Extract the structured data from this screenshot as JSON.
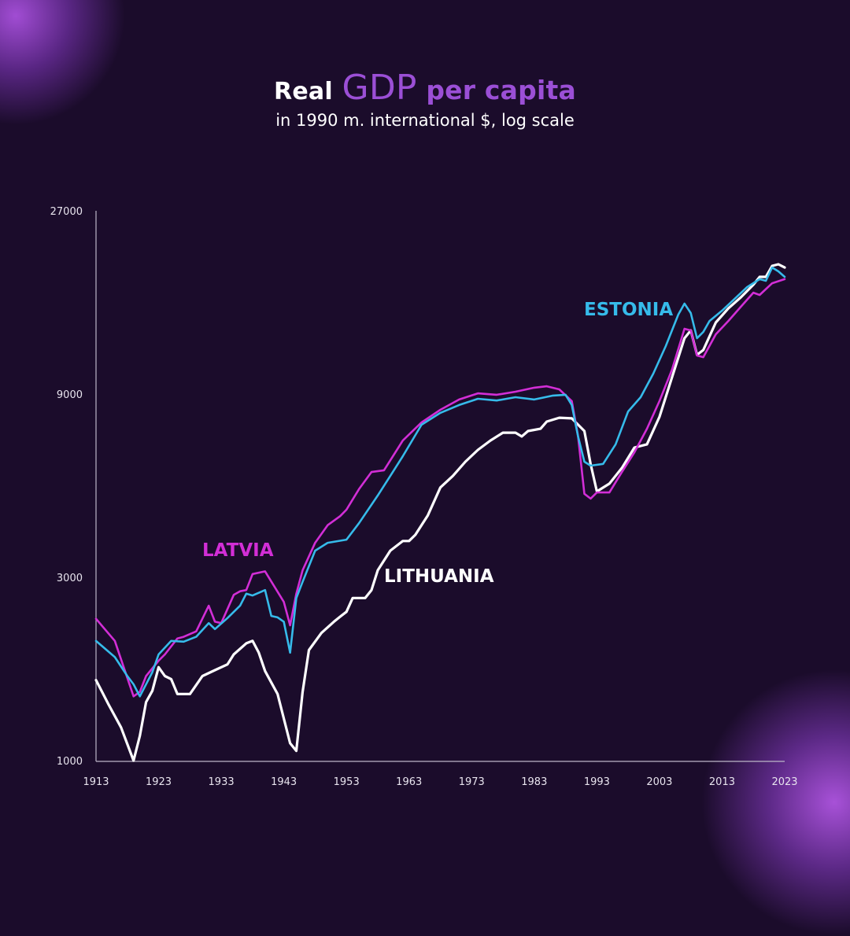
{
  "title": {
    "part1": "Real",
    "part2": "GDP",
    "part3": "per capita"
  },
  "subtitle": "in 1990 m. international $, log scale",
  "colors": {
    "background": "#1b0c2b",
    "accent": "#9b4fd6",
    "latvia": "#d22ed6",
    "estonia": "#36bbea",
    "lithuania": "#ffffff",
    "axis": "#bdb6c8"
  },
  "chart_data": {
    "type": "line",
    "title": "Real GDP per capita",
    "subtitle": "in 1990 m. international $, log scale",
    "xlabel": "",
    "ylabel": "",
    "yscale": "log",
    "xlim": [
      1913,
      2023
    ],
    "ylim": [
      1000,
      27000
    ],
    "x_ticks": [
      "1913",
      "1923",
      "1933",
      "1943",
      "1953",
      "1963",
      "1973",
      "1983",
      "1993",
      "2003",
      "2013",
      "2023"
    ],
    "y_ticks": [
      "1000",
      "3000",
      "9000",
      "27000"
    ],
    "grid": false,
    "legend": "inline labels",
    "series": [
      {
        "name": "LATVIA",
        "color": "#d22ed6",
        "x": [
          1913,
          1916,
          1919,
          1920,
          1921,
          1923,
          1924,
          1926,
          1927,
          1929,
          1931,
          1932,
          1933,
          1935,
          1936,
          1937,
          1938,
          1940,
          1943,
          1944,
          1945,
          1946,
          1948,
          1950,
          1952,
          1953,
          1955,
          1957,
          1959,
          1962,
          1965,
          1968,
          1971,
          1974,
          1977,
          1980,
          1983,
          1985,
          1987,
          1989,
          1990,
          1991,
          1992,
          1993,
          1995,
          1997,
          1999,
          2001,
          2003,
          2005,
          2007,
          2008,
          2009,
          2010,
          2012,
          2014,
          2016,
          2018,
          2019,
          2021,
          2023
        ],
        "values": [
          2340,
          2050,
          1470,
          1510,
          1660,
          1820,
          1890,
          2080,
          2100,
          2170,
          2530,
          2300,
          2280,
          2700,
          2760,
          2780,
          3060,
          3110,
          2590,
          2250,
          2720,
          3130,
          3690,
          4100,
          4330,
          4500,
          5090,
          5640,
          5700,
          6810,
          7590,
          8190,
          8710,
          9040,
          8960,
          9130,
          9350,
          9430,
          9260,
          8630,
          6980,
          4950,
          4810,
          4990,
          4990,
          5640,
          6350,
          7310,
          8630,
          10410,
          13310,
          13180,
          11340,
          11230,
          12880,
          13950,
          15190,
          16530,
          16300,
          17490,
          17920
        ]
      },
      {
        "name": "ESTONIA",
        "color": "#36bbea",
        "x": [
          1913,
          1916,
          1918,
          1919,
          1920,
          1922,
          1923,
          1925,
          1927,
          1929,
          1931,
          1932,
          1934,
          1936,
          1937,
          1938,
          1940,
          1941,
          1942,
          1943,
          1944,
          1945,
          1946,
          1948,
          1950,
          1953,
          1955,
          1958,
          1960,
          1962,
          1965,
          1968,
          1971,
          1974,
          1977,
          1980,
          1983,
          1986,
          1988,
          1989,
          1990,
          1991,
          1992,
          1994,
          1996,
          1998,
          2000,
          2002,
          2004,
          2006,
          2007,
          2008,
          2009,
          2010,
          2011,
          2013,
          2015,
          2017,
          2019,
          2020,
          2021,
          2022,
          2023
        ],
        "values": [
          2050,
          1860,
          1660,
          1580,
          1470,
          1700,
          1890,
          2050,
          2040,
          2100,
          2280,
          2200,
          2350,
          2530,
          2720,
          2690,
          2780,
          2380,
          2360,
          2300,
          1910,
          2650,
          2920,
          3520,
          3690,
          3760,
          4150,
          4900,
          5510,
          6200,
          7490,
          8040,
          8430,
          8750,
          8660,
          8830,
          8710,
          8920,
          8960,
          8430,
          6980,
          6000,
          5860,
          5920,
          6660,
          8110,
          8830,
          10170,
          12000,
          14490,
          15480,
          14630,
          12580,
          13060,
          13950,
          14840,
          15920,
          17090,
          17920,
          17750,
          19220,
          18780,
          18170
        ]
      },
      {
        "name": "LITHUANIA",
        "color": "#ffffff",
        "x": [
          1913,
          1915,
          1917,
          1919,
          1920,
          1921,
          1922,
          1923,
          1924,
          1925,
          1926,
          1928,
          1930,
          1932,
          1934,
          1935,
          1937,
          1938,
          1939,
          1940,
          1942,
          1944,
          1945,
          1946,
          1947,
          1949,
          1951,
          1952,
          1953,
          1954,
          1956,
          1957,
          1958,
          1960,
          1962,
          1963,
          1964,
          1966,
          1968,
          1970,
          1972,
          1974,
          1976,
          1978,
          1980,
          1981,
          1982,
          1984,
          1985,
          1987,
          1989,
          1991,
          1992,
          1993,
          1995,
          1997,
          1999,
          2001,
          2003,
          2005,
          2007,
          2008,
          2009,
          2010,
          2012,
          2014,
          2016,
          2018,
          2019,
          2020,
          2021,
          2022,
          2023
        ],
        "values": [
          1620,
          1400,
          1220,
          1000,
          1160,
          1420,
          1520,
          1750,
          1660,
          1630,
          1490,
          1490,
          1660,
          1720,
          1780,
          1890,
          2020,
          2050,
          1910,
          1710,
          1490,
          1110,
          1060,
          1510,
          1940,
          2150,
          2300,
          2370,
          2440,
          2650,
          2650,
          2780,
          3130,
          3520,
          3730,
          3730,
          3870,
          4350,
          5140,
          5510,
          6000,
          6440,
          6810,
          7140,
          7140,
          6980,
          7210,
          7310,
          7630,
          7810,
          7780,
          7210,
          5920,
          5020,
          5260,
          5780,
          6530,
          6660,
          7850,
          9940,
          12580,
          13180,
          11390,
          11720,
          13820,
          15040,
          16070,
          17330,
          18170,
          18170,
          19410,
          19590,
          19220
        ]
      }
    ],
    "annotations": [
      {
        "text": "LATVIA",
        "series": "LATVIA"
      },
      {
        "text": "ESTONIA",
        "series": "ESTONIA"
      },
      {
        "text": "LITHUANIA",
        "series": "LITHUANIA"
      }
    ]
  }
}
